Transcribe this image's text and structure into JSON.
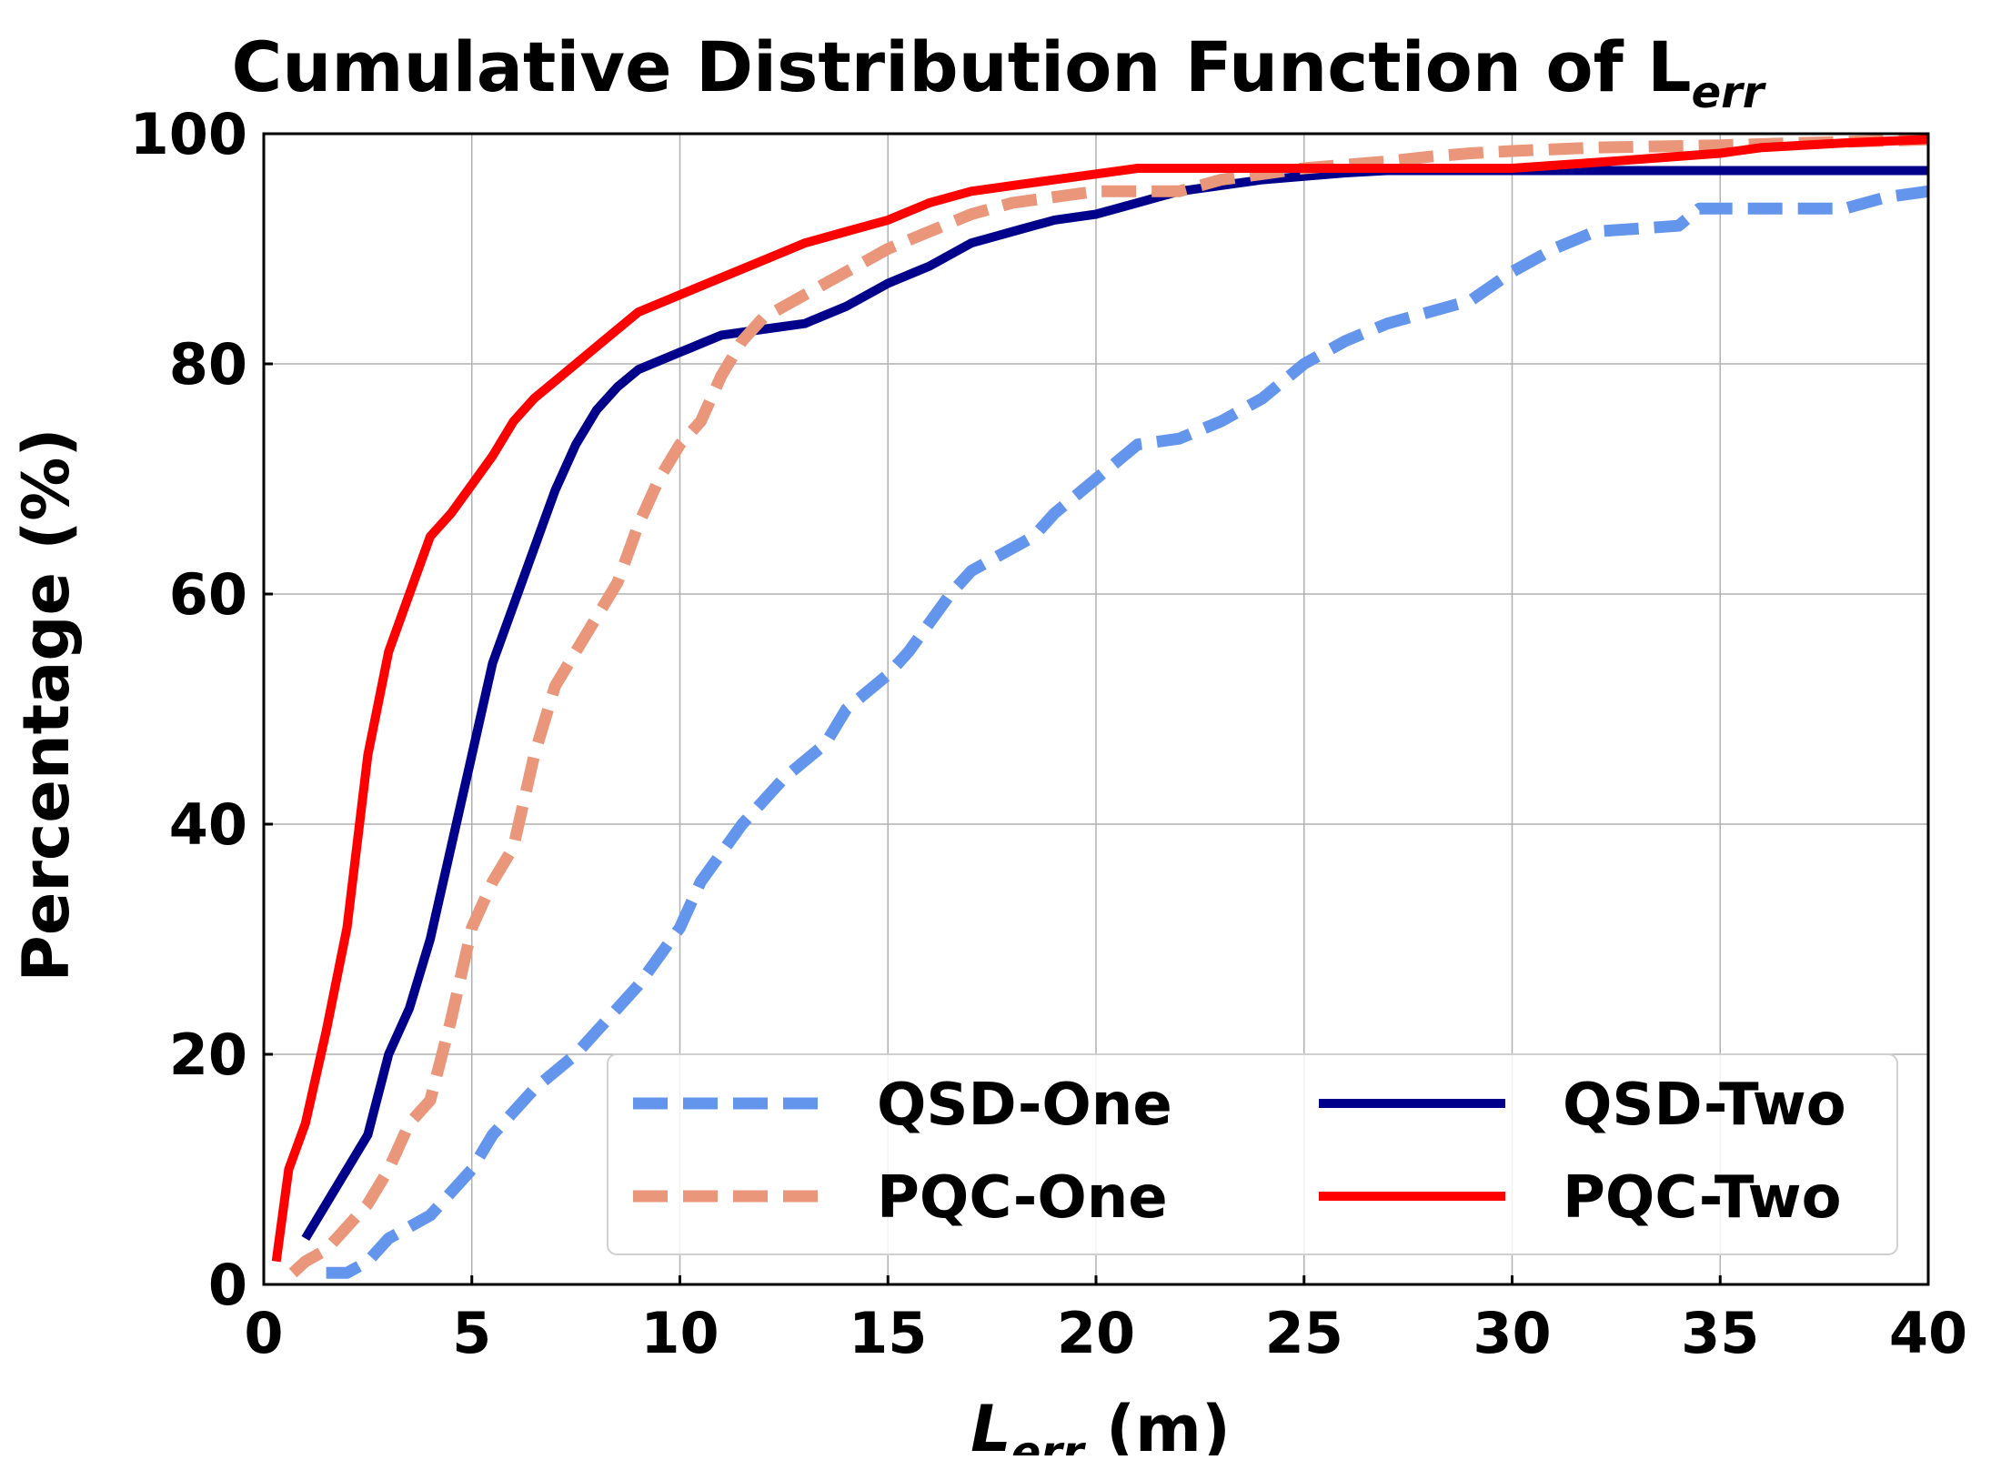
{
  "chart_data": {
    "type": "line",
    "title": "Cumulative Distribution Function of L",
    "title_subscript": "err",
    "xlabel": "L",
    "xlabel_subscript": "err",
    "xlabel_unit": " (m)",
    "ylabel": "Percentage (%)",
    "xlim": [
      0,
      40
    ],
    "ylim": [
      0,
      100
    ],
    "xticks": [
      0,
      5,
      10,
      15,
      20,
      25,
      30,
      35,
      40
    ],
    "yticks": [
      0,
      20,
      40,
      60,
      80,
      100
    ],
    "grid": true,
    "legend_position": "lower-right",
    "legend_columns": 2,
    "series": [
      {
        "name": "QSD-One",
        "style": "dashed",
        "color": "#6495ED",
        "points": [
          [
            1.5,
            1
          ],
          [
            2,
            1
          ],
          [
            2.5,
            2
          ],
          [
            3,
            4
          ],
          [
            3.5,
            5
          ],
          [
            4,
            6
          ],
          [
            5,
            10
          ],
          [
            5.5,
            13
          ],
          [
            6.5,
            17
          ],
          [
            7.5,
            20
          ],
          [
            8,
            22
          ],
          [
            9,
            26
          ],
          [
            10,
            31
          ],
          [
            10.5,
            35
          ],
          [
            11.5,
            40
          ],
          [
            12.5,
            44
          ],
          [
            13.5,
            47
          ],
          [
            14,
            50
          ],
          [
            15,
            53
          ],
          [
            15.5,
            55
          ],
          [
            16.5,
            60
          ],
          [
            17,
            62
          ],
          [
            18,
            64
          ],
          [
            18.5,
            65
          ],
          [
            19,
            67
          ],
          [
            20,
            70
          ],
          [
            21,
            73
          ],
          [
            22,
            73.5
          ],
          [
            23,
            75
          ],
          [
            24,
            77
          ],
          [
            25,
            80
          ],
          [
            26,
            82
          ],
          [
            27,
            83.5
          ],
          [
            28,
            84.5
          ],
          [
            29,
            85.5
          ],
          [
            30,
            88
          ],
          [
            31,
            90
          ],
          [
            32,
            91.5
          ],
          [
            34,
            92
          ],
          [
            34.5,
            93.5
          ],
          [
            36,
            93.5
          ],
          [
            38,
            93.5
          ],
          [
            39,
            94.5
          ],
          [
            40,
            95
          ]
        ]
      },
      {
        "name": "QSD-Two",
        "style": "solid",
        "color": "#00008B",
        "points": [
          [
            1,
            4
          ],
          [
            1.5,
            7
          ],
          [
            2,
            10
          ],
          [
            2.5,
            13
          ],
          [
            3,
            20
          ],
          [
            3.5,
            24
          ],
          [
            4,
            30
          ],
          [
            4.5,
            38
          ],
          [
            5,
            46
          ],
          [
            5.5,
            54
          ],
          [
            6,
            59
          ],
          [
            6.5,
            64
          ],
          [
            7,
            69
          ],
          [
            7.5,
            73
          ],
          [
            8,
            76
          ],
          [
            8.5,
            78
          ],
          [
            9,
            79.5
          ],
          [
            10,
            81
          ],
          [
            11,
            82.5
          ],
          [
            12,
            83
          ],
          [
            13,
            83.5
          ],
          [
            14,
            85
          ],
          [
            15,
            87
          ],
          [
            16,
            88.5
          ],
          [
            17,
            90.5
          ],
          [
            18,
            91.5
          ],
          [
            19,
            92.5
          ],
          [
            20,
            93
          ],
          [
            21,
            94
          ],
          [
            22,
            95
          ],
          [
            23,
            95.5
          ],
          [
            24,
            96
          ],
          [
            25,
            96.3
          ],
          [
            26,
            96.6
          ],
          [
            27,
            96.8
          ],
          [
            40,
            96.8
          ]
        ]
      },
      {
        "name": "PQC-One",
        "style": "dashed",
        "color": "#E9967A",
        "points": [
          [
            0.7,
            1
          ],
          [
            1,
            2
          ],
          [
            1.5,
            3
          ],
          [
            2,
            5
          ],
          [
            2.5,
            7
          ],
          [
            3,
            10
          ],
          [
            3.5,
            14
          ],
          [
            4,
            16
          ],
          [
            4.5,
            23
          ],
          [
            5,
            31
          ],
          [
            5.5,
            35
          ],
          [
            6,
            38
          ],
          [
            6.5,
            46
          ],
          [
            7,
            52
          ],
          [
            7.5,
            55
          ],
          [
            8,
            58
          ],
          [
            8.5,
            61
          ],
          [
            9,
            66
          ],
          [
            9.5,
            70
          ],
          [
            10,
            73
          ],
          [
            10.5,
            75
          ],
          [
            11,
            79
          ],
          [
            11.5,
            82
          ],
          [
            12,
            84
          ],
          [
            12.5,
            85
          ],
          [
            13,
            86
          ],
          [
            14,
            88
          ],
          [
            15,
            90
          ],
          [
            16,
            91.5
          ],
          [
            17,
            93
          ],
          [
            18,
            94
          ],
          [
            19,
            94.5
          ],
          [
            20,
            95
          ],
          [
            21,
            95
          ],
          [
            22,
            95
          ],
          [
            23,
            96
          ],
          [
            24,
            96.5
          ],
          [
            25,
            97
          ],
          [
            26,
            97.3
          ],
          [
            27,
            97.6
          ],
          [
            28,
            98
          ],
          [
            29,
            98.3
          ],
          [
            30,
            98.5
          ],
          [
            32,
            98.8
          ],
          [
            35,
            99
          ],
          [
            38,
            99.3
          ],
          [
            40,
            99.5
          ]
        ]
      },
      {
        "name": "PQC-Two",
        "style": "solid",
        "color": "#FF0000",
        "points": [
          [
            0.3,
            2
          ],
          [
            0.6,
            10
          ],
          [
            1,
            14
          ],
          [
            1.5,
            22
          ],
          [
            2,
            31
          ],
          [
            2.5,
            46
          ],
          [
            3,
            55
          ],
          [
            3.5,
            60
          ],
          [
            4,
            65
          ],
          [
            4.5,
            67
          ],
          [
            5,
            69.5
          ],
          [
            5.5,
            72
          ],
          [
            6,
            75
          ],
          [
            6.5,
            77
          ],
          [
            7,
            78.5
          ],
          [
            8,
            81.5
          ],
          [
            9,
            84.5
          ],
          [
            10,
            86
          ],
          [
            11,
            87.5
          ],
          [
            12,
            89
          ],
          [
            13,
            90.5
          ],
          [
            14,
            91.5
          ],
          [
            15,
            92.5
          ],
          [
            16,
            94
          ],
          [
            17,
            95
          ],
          [
            18,
            95.5
          ],
          [
            19,
            96
          ],
          [
            20,
            96.5
          ],
          [
            21,
            97
          ],
          [
            25,
            97
          ],
          [
            30,
            97
          ],
          [
            32,
            97.5
          ],
          [
            35,
            98.3
          ],
          [
            36,
            98.8
          ],
          [
            38,
            99.2
          ],
          [
            40,
            99.5
          ]
        ]
      }
    ]
  }
}
